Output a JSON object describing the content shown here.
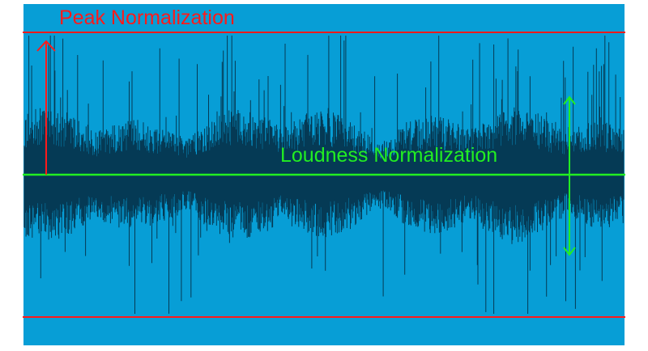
{
  "labels": {
    "peak": "Peak Normalization",
    "loudness": "Loudness Normalization"
  },
  "colors": {
    "background": "#079ed6",
    "waveform": "#053a55",
    "peak": "#ff1a1a",
    "loudness": "#22ee22"
  }
}
